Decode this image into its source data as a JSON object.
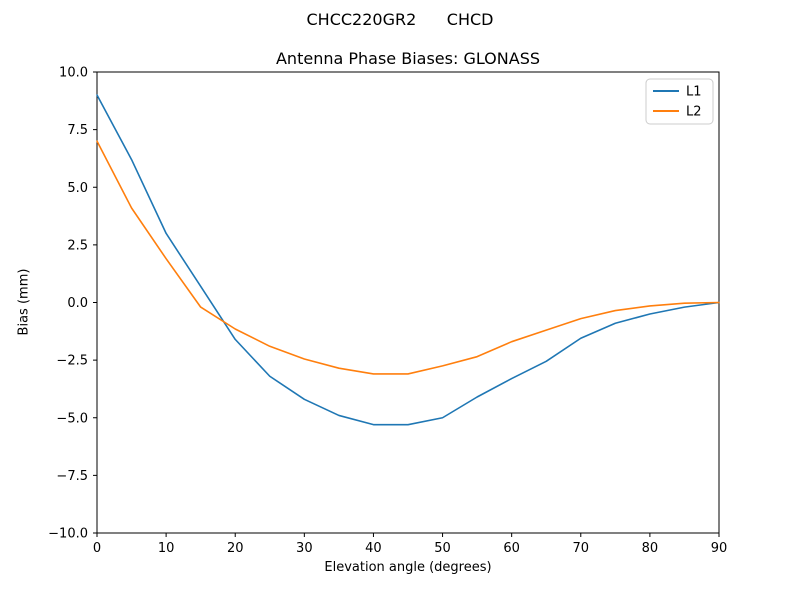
{
  "figure": {
    "suptitle": "CHCC220GR2      CHCD",
    "title": "Antenna Phase Biases: GLONASS",
    "xlabel": "Elevation angle (degrees)",
    "ylabel": "Bias (mm)"
  },
  "legend": {
    "position": "upper right",
    "entries": [
      {
        "label": "L1",
        "color": "#1f77b4"
      },
      {
        "label": "L2",
        "color": "#ff7f0e"
      }
    ]
  },
  "chart_data": {
    "type": "line",
    "suptitle": "CHCC220GR2      CHCD",
    "title": "Antenna Phase Biases: GLONASS",
    "xlabel": "Elevation angle (degrees)",
    "ylabel": "Bias (mm)",
    "xlim": [
      0,
      90
    ],
    "ylim": [
      -10,
      10
    ],
    "xticks": [
      0,
      10,
      20,
      30,
      40,
      50,
      60,
      70,
      80,
      90
    ],
    "xtick_labels": [
      "0",
      "10",
      "20",
      "30",
      "40",
      "50",
      "60",
      "70",
      "80",
      "90"
    ],
    "yticks": [
      10,
      7.5,
      5,
      2.5,
      0,
      -2.5,
      -5,
      -7.5,
      -10
    ],
    "ytick_labels": [
      "10.0",
      "7.5",
      "5.0",
      "2.5",
      "0.0",
      "−2.5",
      "−5.0",
      "−7.5",
      "−10.0"
    ],
    "grid": false,
    "legend_position": "upper right",
    "x": [
      0,
      5,
      10,
      15,
      20,
      25,
      30,
      35,
      40,
      45,
      50,
      55,
      60,
      65,
      70,
      75,
      80,
      85,
      90
    ],
    "series": [
      {
        "name": "L1",
        "color": "#1f77b4",
        "values": [
          9.0,
          6.2,
          3.0,
          0.7,
          -1.6,
          -3.2,
          -4.2,
          -4.9,
          -5.3,
          -5.3,
          -5.0,
          -4.1,
          -3.3,
          -2.55,
          -1.55,
          -0.9,
          -0.5,
          -0.2,
          0.0
        ]
      },
      {
        "name": "L2",
        "color": "#ff7f0e",
        "values": [
          7.0,
          4.1,
          1.9,
          -0.2,
          -1.15,
          -1.9,
          -2.45,
          -2.85,
          -3.1,
          -3.1,
          -2.75,
          -2.35,
          -1.7,
          -1.2,
          -0.7,
          -0.35,
          -0.15,
          -0.03,
          0.0
        ]
      }
    ]
  },
  "axes_colors": {
    "spine": "#000000",
    "background": "#ffffff",
    "legend_border": "#cccccc"
  }
}
